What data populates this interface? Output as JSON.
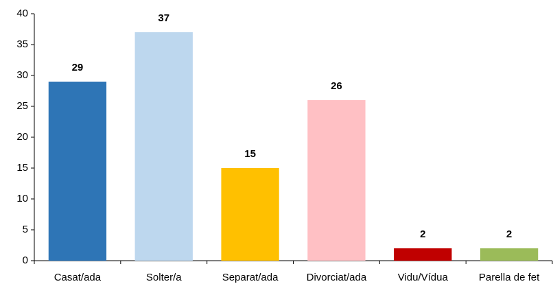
{
  "chart_data": {
    "type": "bar",
    "categories": [
      "Casat/ada",
      "Solter/a",
      "Separat/ada",
      "Divorciat/ada",
      "Vidu/Vídua",
      "Parella de fet"
    ],
    "values": [
      29,
      37,
      15,
      26,
      2,
      2
    ],
    "colors": [
      "#2e75b6",
      "#bdd7ee",
      "#ffc000",
      "#ffc0c4",
      "#c00000",
      "#9bbb59"
    ],
    "ylim": [
      0,
      40
    ],
    "yticks": [
      0,
      5,
      10,
      15,
      20,
      25,
      30,
      35,
      40
    ],
    "grid": false
  }
}
